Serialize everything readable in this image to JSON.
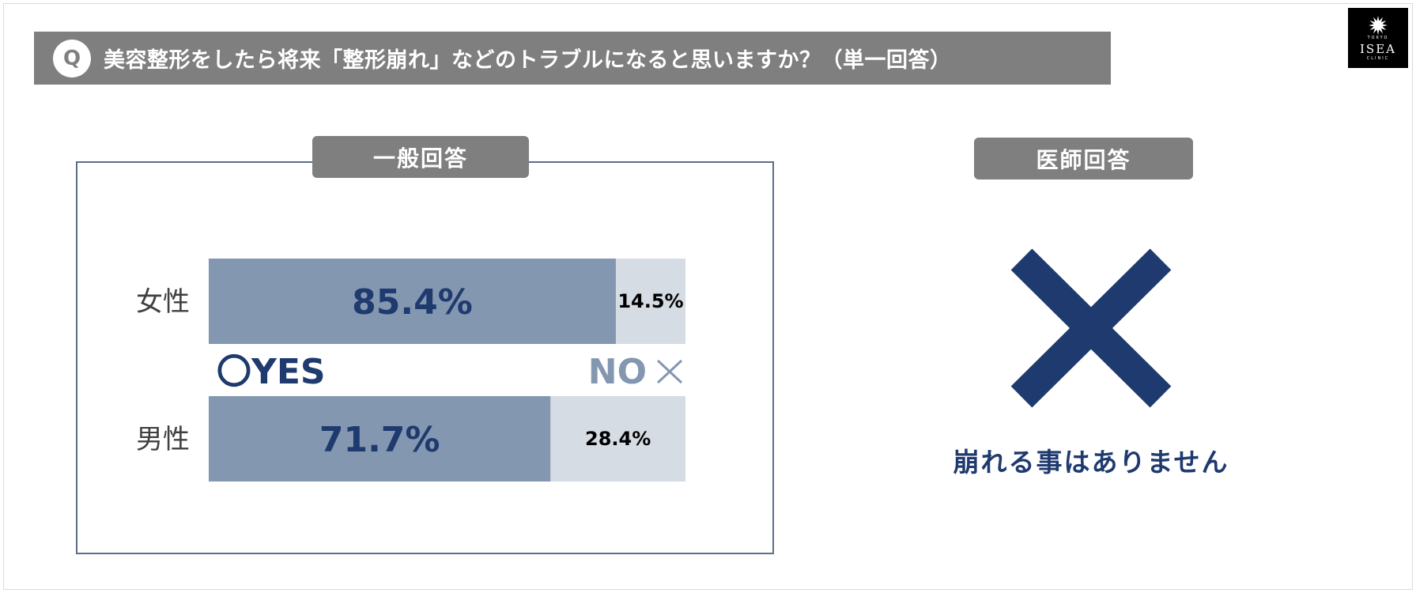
{
  "question": {
    "badge": "Q",
    "text": "美容整形をしたら将来「整形崩れ」などのトラブルになると思いますか？（単一回答）"
  },
  "logo": {
    "text": "ISEA",
    "top_small": "TOKYO",
    "sub": "CLINIC"
  },
  "general": {
    "tab_label": "一般回答"
  },
  "doctor": {
    "tab_label": "医師回答",
    "answer_icon": "cross-mark-icon",
    "answer": "崩れる事はありません"
  },
  "chart_data": {
    "type": "bar",
    "orientation": "horizontal",
    "stacked": true,
    "categories": [
      "女性",
      "男性"
    ],
    "series": [
      {
        "name": "YES",
        "values": [
          85.4,
          71.7
        ],
        "labels": [
          "85.4%",
          "71.7%"
        ],
        "color": "#8497b0"
      },
      {
        "name": "NO",
        "values": [
          14.5,
          28.4
        ],
        "labels": [
          "14.5%",
          "28.4%"
        ],
        "color": "#d6dce4"
      }
    ],
    "legend": {
      "yes_label": "〇YES",
      "no_label": "NO",
      "no_icon": "cross-icon",
      "yes_color": "#1f3a6e",
      "no_color": "#8497b0"
    },
    "ylim": [
      0,
      100
    ],
    "grid": false
  },
  "colors": {
    "accent": "#1f3a6e",
    "header_gray": "#7f7f7f",
    "box_border": "#5b6f8a"
  }
}
